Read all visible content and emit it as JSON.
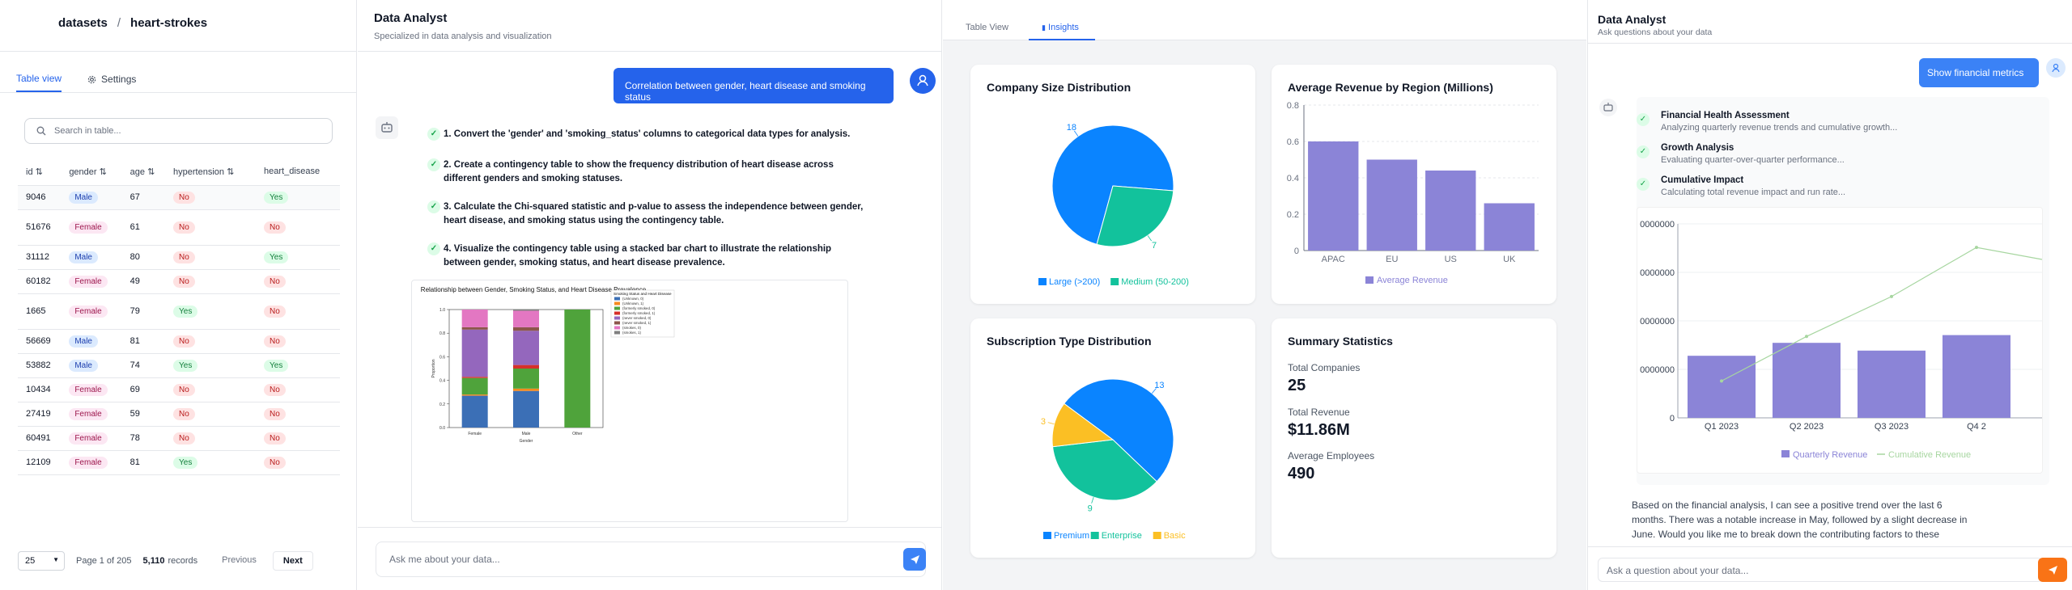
{
  "panel1": {
    "breadcrumb": {
      "root": "datasets",
      "sep": "/",
      "current": "heart-strokes"
    },
    "tabs": [
      "Table view",
      "Settings"
    ],
    "search_placeholder": "Search in table...",
    "columns": [
      "id",
      "gender",
      "age",
      "hypertension",
      "heart_disease"
    ],
    "rows": [
      [
        "9046",
        "Male",
        "67",
        "No",
        "Yes"
      ],
      [
        "51676",
        "Female",
        "61",
        "No",
        "No"
      ],
      [
        "31112",
        "Male",
        "80",
        "No",
        "Yes"
      ],
      [
        "60182",
        "Female",
        "49",
        "No",
        "No"
      ],
      [
        "1665",
        "Female",
        "79",
        "Yes",
        "No"
      ],
      [
        "56669",
        "Male",
        "81",
        "No",
        "No"
      ],
      [
        "53882",
        "Male",
        "74",
        "Yes",
        "Yes"
      ],
      [
        "10434",
        "Female",
        "69",
        "No",
        "No"
      ],
      [
        "27419",
        "Female",
        "59",
        "No",
        "No"
      ],
      [
        "60491",
        "Female",
        "78",
        "No",
        "No"
      ],
      [
        "12109",
        "Female",
        "81",
        "Yes",
        "No"
      ]
    ],
    "page_size": "25",
    "page_info": "Page 1 of 205",
    "records_count": "5,110",
    "records_label": "records",
    "prev": "Previous",
    "next": "Next"
  },
  "panel2": {
    "title": "Data Analyst",
    "subtitle": "Specialized in data analysis and visualization",
    "user_message": "Correlation between gender, heart disease and smoking status",
    "steps": [
      "1. Convert the 'gender' and 'smoking_status' columns to categorical data types for analysis.",
      "2. Create a contingency table to show the frequency distribution of heart disease across different genders and smoking statuses.",
      "3. Calculate the Chi-squared statistic and p-value to assess the independence between gender, heart disease, and smoking status using the contingency table.",
      "4. Visualize the contingency table using a stacked bar chart to illustrate the relationship between gender, smoking status, and heart disease prevalence."
    ],
    "input_placeholder": "Ask me about your data..."
  },
  "panel3": {
    "tabs": [
      "Table View",
      "Insights"
    ]
  },
  "panel4": {
    "title": "Data Analyst",
    "subtitle": "Ask questions about your data",
    "user_message": "Show financial metrics",
    "insights": [
      {
        "title": "Financial Health Assessment",
        "desc": "Analyzing quarterly revenue trends and cumulative growth..."
      },
      {
        "title": "Growth Analysis",
        "desc": "Evaluating quarter-over-quarter performance..."
      },
      {
        "title": "Cumulative Impact",
        "desc": "Calculating total revenue impact and run rate..."
      }
    ],
    "response_lines": [
      "Based on the financial analysis, I can see a positive trend over the last 6",
      "months. There was a notable increase in May, followed by a slight decrease in",
      "June. Would you like me to break down the contributing factors to these"
    ],
    "input_placeholder": "Ask a question about your data..."
  },
  "summary": {
    "title": "Summary Statistics",
    "items": [
      {
        "label": "Total Companies",
        "value": "25"
      },
      {
        "label": "Total Revenue",
        "value": "$11.86M"
      },
      {
        "label": "Average Employees",
        "value": "490"
      }
    ]
  },
  "colors": {
    "blue": "#2563eb",
    "chart_blue": "#0a84ff",
    "teal": "#12c29c",
    "amber": "#fbbf24",
    "purple": "#8b84d7",
    "orange": "#f97316"
  },
  "chart_data": [
    {
      "type": "bar",
      "title": "Relationship between Gender, Smoking Status, and Heart Disease Prevalence",
      "xlabel": "Gender",
      "ylabel": "Proportion",
      "categories": [
        "Female",
        "Male",
        "Other"
      ],
      "ylim": [
        0,
        1.0
      ],
      "yticks": [
        "0.0",
        "0.2",
        "0.4",
        "0.6",
        "0.8",
        "1.0"
      ],
      "legend_title": "Smoking Status and Heart Disease",
      "series": [
        {
          "name": "(Unknown, 0)",
          "color": "#3b6fb6",
          "values": [
            0.27,
            0.31,
            0
          ]
        },
        {
          "name": "(Unknown, 1)",
          "color": "#f58a1f",
          "values": [
            0.01,
            0.02,
            0
          ]
        },
        {
          "name": "(formerly smoked, 0)",
          "color": "#4fa33b",
          "values": [
            0.14,
            0.17,
            1.0
          ]
        },
        {
          "name": "(formerly smoked, 1)",
          "color": "#d6302a",
          "values": [
            0.01,
            0.03,
            0
          ]
        },
        {
          "name": "(never smoked, 0)",
          "color": "#9467bd",
          "values": [
            0.4,
            0.29,
            0
          ]
        },
        {
          "name": "(never smoked, 1)",
          "color": "#8c564b",
          "values": [
            0.02,
            0.03,
            0
          ]
        },
        {
          "name": "(smokes, 0)",
          "color": "#e377c2",
          "values": [
            0.15,
            0.14,
            0
          ]
        },
        {
          "name": "(smokes, 1)",
          "color": "#7f7f7f",
          "values": [
            0.0,
            0.01,
            0
          ]
        }
      ]
    },
    {
      "type": "pie",
      "title": "Company Size Distribution",
      "categories": [
        "Large (>200)",
        "Medium (50-200)"
      ],
      "values": [
        18,
        7
      ],
      "colors": [
        "#0a84ff",
        "#12c29c"
      ]
    },
    {
      "type": "bar",
      "title": "Average Revenue by Region (Millions)",
      "categories": [
        "APAC",
        "EU",
        "US",
        "UK"
      ],
      "values": [
        0.6,
        0.5,
        0.44,
        0.26
      ],
      "ylim": [
        0,
        0.8
      ],
      "yticks": [
        "0",
        "0.2",
        "0.4",
        "0.6",
        "0.8"
      ],
      "legend": "Average Revenue",
      "color": "#8b84d7"
    },
    {
      "type": "pie",
      "title": "Subscription Type Distribution",
      "categories": [
        "Premium",
        "Enterprise",
        "Basic"
      ],
      "values": [
        13,
        9,
        3
      ],
      "colors": [
        "#0a84ff",
        "#12c29c",
        "#fbbf24"
      ]
    },
    {
      "type": "bar",
      "categories": [
        "Q1 2023",
        "Q2 2023",
        "Q3 2023",
        "Q4 2"
      ],
      "yticks": [
        "0",
        "0000000",
        "0000000",
        "0000000",
        "0000000"
      ],
      "series": [
        {
          "name": "Quarterly Revenue",
          "values": [
            2.4,
            2.9,
            2.6,
            3.2
          ]
        },
        {
          "name": "Cumulative Revenue",
          "values": [
            2.4,
            5.3,
            7.9,
            11.1
          ]
        }
      ],
      "ylim": [
        0,
        12
      ],
      "colors": [
        "#8b84d7",
        "#a7d6a0"
      ]
    }
  ]
}
